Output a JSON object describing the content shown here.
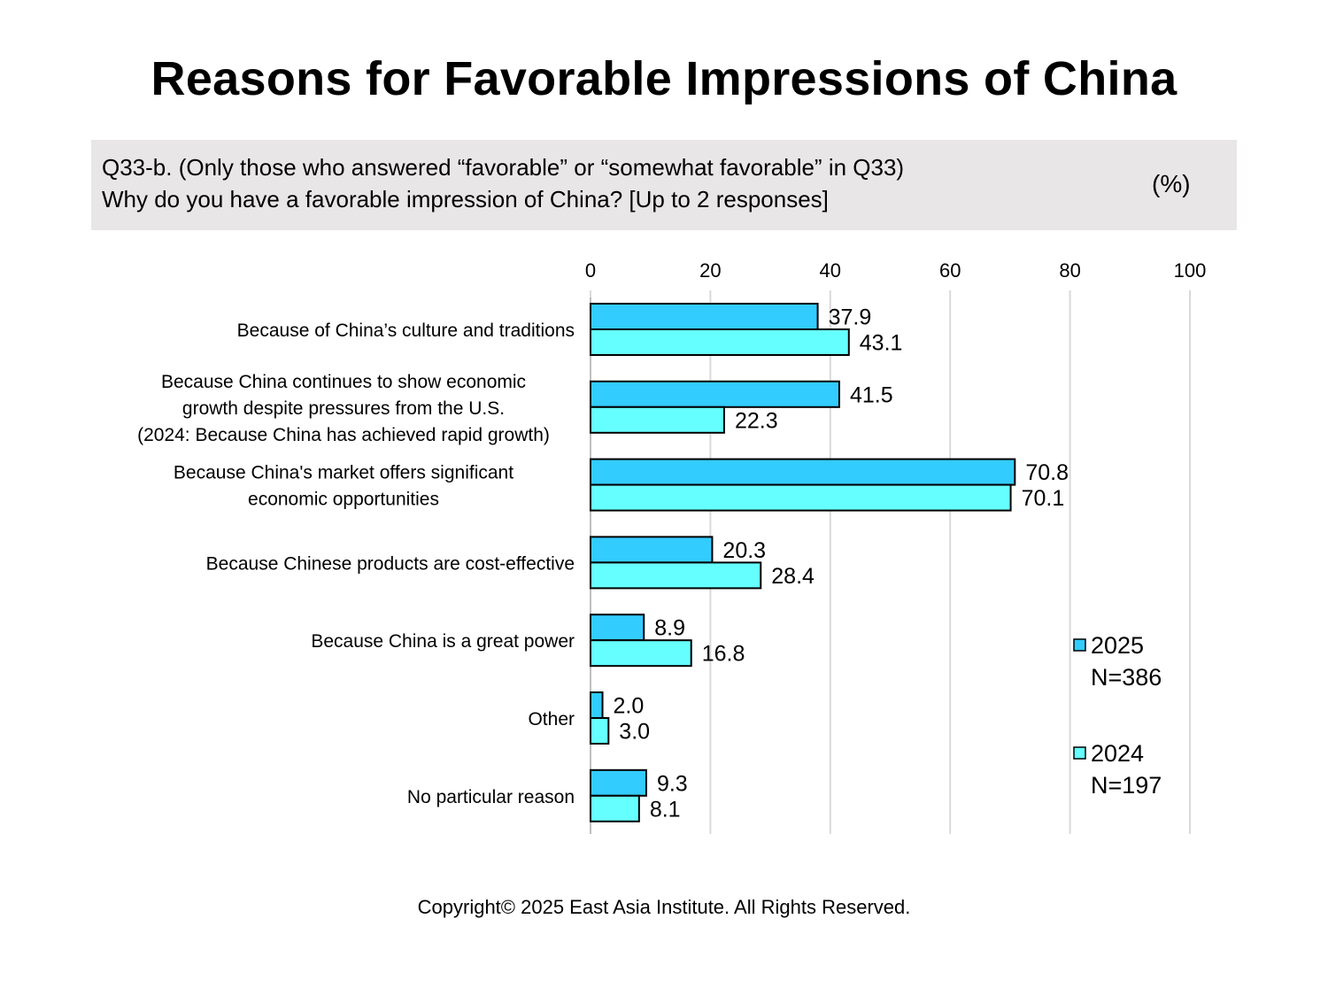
{
  "title": "Reasons for Favorable Impressions of China",
  "question": {
    "line1": "Q33-b. (Only those who answered “favorable” or “somewhat favorable” in Q33)",
    "line2": "Why do you have a favorable impression of China? [Up to 2 responses]",
    "unit": "(%)"
  },
  "copyright": "Copyright© 2025 East Asia Institute. All Rights Reserved.",
  "colors": {
    "series_2025": "#33ccff",
    "series_2024": "#66ffff",
    "gridline": "#d9d9d9",
    "bar_outline": "#000000"
  },
  "chart_data": {
    "type": "bar",
    "orientation": "horizontal",
    "categories": [
      [
        "Because of China’s culture and traditions"
      ],
      [
        "Because China continues to show economic",
        "growth despite pressures from the U.S.",
        "(2024: Because China has achieved rapid growth)"
      ],
      [
        "Because China's market offers significant",
        "economic opportunities"
      ],
      [
        "Because Chinese products are cost-effective"
      ],
      [
        "Because China is a great power"
      ],
      [
        "Other"
      ],
      [
        "No particular reason"
      ]
    ],
    "series": [
      {
        "name": "2025",
        "note": "N=386",
        "values": [
          37.9,
          41.5,
          70.8,
          20.3,
          8.9,
          2.0,
          9.3
        ]
      },
      {
        "name": "2024",
        "note": "N=197",
        "values": [
          43.1,
          22.3,
          70.1,
          28.4,
          16.8,
          3.0,
          8.1
        ]
      }
    ],
    "xlim": [
      0,
      100
    ],
    "xticks": [
      "0",
      "20",
      "40",
      "60",
      "80",
      "100"
    ],
    "grid": true,
    "legend_position": "right"
  }
}
